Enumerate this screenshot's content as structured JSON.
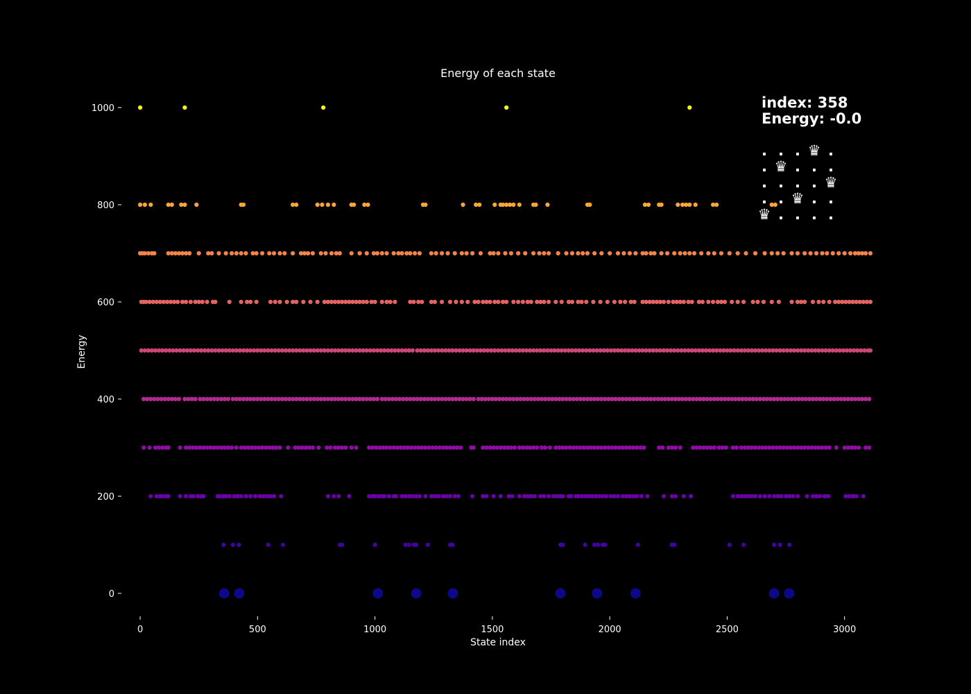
{
  "chart_data": {
    "type": "scatter",
    "title": "Energy of each state",
    "xlabel": "State index",
    "ylabel": "Energy",
    "xlim": [
      -80,
      3125
    ],
    "ylim": [
      -50,
      1050
    ],
    "x_ticks": [
      0,
      500,
      1000,
      1500,
      2000,
      2500,
      3000
    ],
    "y_ticks": [
      0,
      200,
      400,
      600,
      800,
      1000
    ],
    "grid": false,
    "colormap": "plasma",
    "annotation": {
      "index_line": "index: 358",
      "energy_line": "Energy: -0.0",
      "board": [
        [
          ".",
          ".",
          ".",
          "♛",
          "."
        ],
        [
          ".",
          "♛",
          ".",
          ".",
          "."
        ],
        [
          ".",
          ".",
          ".",
          ".",
          "♛"
        ],
        [
          ".",
          ".",
          "♛",
          ".",
          "."
        ],
        [
          "♛",
          ".",
          ".",
          ".",
          "."
        ]
      ]
    },
    "series": [
      {
        "energy": 0,
        "color": "#0d0887",
        "marker_size": "large",
        "x": [
          358,
          422,
          1012,
          1176,
          1332,
          1790,
          1946,
          2110,
          2700,
          2764
        ]
      },
      {
        "energy": 100,
        "color": "#41049d",
        "x": [
          355,
          395,
          420,
          545,
          608,
          850,
          860,
          1000,
          1130,
          1145,
          1165,
          1175,
          1225,
          1320,
          1330,
          1790,
          1800,
          1895,
          1935,
          1950,
          1970,
          1980,
          2120,
          2265,
          2275,
          2510,
          2570,
          2700,
          2725,
          2765
        ]
      },
      {
        "energy": 200,
        "color": "#6a00a8",
        "x": [
          45,
          70,
          85,
          95,
          110,
          120,
          170,
          195,
          215,
          225,
          245,
          260,
          270,
          330,
          340,
          355,
          365,
          380,
          400,
          415,
          430,
          450,
          470,
          490,
          510,
          525,
          540,
          555,
          570,
          600,
          800,
          825,
          845,
          890,
          975,
          990,
          1000,
          1015,
          1030,
          1040,
          1060,
          1080,
          1090,
          1115,
          1130,
          1145,
          1160,
          1175,
          1190,
          1215,
          1240,
          1255,
          1270,
          1290,
          1305,
          1320,
          1340,
          1355,
          1415,
          1460,
          1475,
          1505,
          1535,
          1570,
          1585,
          1615,
          1635,
          1650,
          1665,
          1680,
          1705,
          1720,
          1740,
          1760,
          1775,
          1790,
          1800,
          1825,
          1835,
          1855,
          1865,
          1880,
          1895,
          1910,
          1925,
          1940,
          1955,
          1970,
          1985,
          2005,
          2020,
          2035,
          2055,
          2070,
          2085,
          2100,
          2115,
          2135,
          2160,
          2230,
          2265,
          2280,
          2315,
          2345,
          2525,
          2545,
          2560,
          2575,
          2590,
          2605,
          2620,
          2640,
          2660,
          2680,
          2700,
          2715,
          2730,
          2750,
          2765,
          2780,
          2800,
          2840,
          2865,
          2880,
          2895,
          2915,
          2930,
          3005,
          3020,
          3035,
          3050,
          3080
        ]
      },
      {
        "energy": 300,
        "color": "#8f0da4",
        "x": [
          15,
          40,
          65,
          80,
          95,
          110,
          120,
          170,
          195,
          210,
          225,
          240,
          255,
          270,
          285,
          300,
          315,
          330,
          345,
          360,
          375,
          390,
          410,
          430,
          445,
          460,
          475,
          490,
          505,
          520,
          535,
          550,
          565,
          580,
          595,
          630,
          660,
          675,
          690,
          705,
          720,
          735,
          760,
          795,
          810,
          830,
          845,
          860,
          875,
          900,
          920,
          975,
          990,
          1005,
          1020,
          1035,
          1050,
          1065,
          1080,
          1095,
          1110,
          1125,
          1140,
          1155,
          1170,
          1185,
          1200,
          1215,
          1230,
          1245,
          1260,
          1275,
          1290,
          1305,
          1320,
          1335,
          1350,
          1365,
          1410,
          1420,
          1460,
          1475,
          1490,
          1505,
          1520,
          1535,
          1550,
          1565,
          1580,
          1595,
          1615,
          1630,
          1645,
          1660,
          1675,
          1690,
          1710,
          1725,
          1745,
          1770,
          1785,
          1800,
          1815,
          1830,
          1845,
          1860,
          1875,
          1890,
          1905,
          1920,
          1935,
          1950,
          1965,
          1980,
          1995,
          2010,
          2025,
          2040,
          2055,
          2070,
          2085,
          2100,
          2115,
          2130,
          2145,
          2210,
          2225,
          2250,
          2265,
          2280,
          2300,
          2355,
          2370,
          2385,
          2400,
          2415,
          2430,
          2445,
          2465,
          2480,
          2495,
          2525,
          2540,
          2560,
          2575,
          2590,
          2605,
          2620,
          2635,
          2650,
          2665,
          2680,
          2695,
          2710,
          2725,
          2740,
          2755,
          2770,
          2785,
          2800,
          2815,
          2830,
          2845,
          2860,
          2875,
          2890,
          2905,
          2920,
          2935,
          2965,
          3000,
          3015,
          3030,
          3045,
          3060,
          3090,
          3105
        ]
      },
      {
        "energy": 400,
        "color": "#b12a90",
        "x": [
          15,
          30,
          45,
          60,
          75,
          90,
          105,
          120,
          135,
          150,
          165,
          190,
          205,
          220,
          235,
          255,
          270,
          285,
          300,
          315,
          330,
          345,
          360,
          375,
          395,
          410,
          425,
          440,
          455,
          470,
          485,
          500,
          515,
          530,
          545,
          560,
          575,
          590,
          605,
          620,
          635,
          650,
          665,
          680,
          695,
          710,
          725,
          740,
          755,
          770,
          785,
          800,
          815,
          830,
          845,
          860,
          875,
          890,
          905,
          920,
          935,
          950,
          965,
          980,
          995,
          1010,
          1030,
          1045,
          1060,
          1075,
          1090,
          1105,
          1120,
          1135,
          1150,
          1165,
          1180,
          1195,
          1210,
          1225,
          1240,
          1255,
          1270,
          1285,
          1300,
          1315,
          1330,
          1345,
          1360,
          1375,
          1390,
          1405,
          1420,
          1440,
          1455,
          1470,
          1485,
          1500,
          1515,
          1530,
          1545,
          1560,
          1575,
          1590,
          1605,
          1620,
          1635,
          1650,
          1665,
          1680,
          1695,
          1710,
          1725,
          1740,
          1755,
          1770,
          1785,
          1800,
          1815,
          1830,
          1845,
          1860,
          1875,
          1890,
          1905,
          1920,
          1935,
          1950,
          1965,
          1980,
          1995,
          2010,
          2025,
          2040,
          2055,
          2070,
          2085,
          2100,
          2115,
          2130,
          2145,
          2160,
          2175,
          2190,
          2205,
          2220,
          2235,
          2250,
          2265,
          2280,
          2295,
          2310,
          2325,
          2340,
          2355,
          2370,
          2385,
          2400,
          2415,
          2430,
          2445,
          2460,
          2475,
          2490,
          2505,
          2520,
          2535,
          2550,
          2565,
          2580,
          2595,
          2610,
          2625,
          2640,
          2655,
          2670,
          2685,
          2700,
          2715,
          2730,
          2745,
          2760,
          2775,
          2790,
          2805,
          2820,
          2835,
          2850,
          2865,
          2880,
          2895,
          2910,
          2925,
          2940,
          2955,
          2970,
          2985,
          3000,
          3015,
          3030,
          3045,
          3060,
          3075,
          3090,
          3105
        ]
      },
      {
        "energy": 500,
        "color": "#cc4778",
        "x": [
          5,
          20,
          35,
          50,
          65,
          80,
          95,
          110,
          125,
          140,
          155,
          170,
          185,
          200,
          215,
          230,
          245,
          260,
          275,
          290,
          305,
          320,
          335,
          350,
          365,
          380,
          395,
          410,
          425,
          440,
          455,
          470,
          485,
          500,
          515,
          530,
          545,
          560,
          575,
          590,
          605,
          620,
          635,
          650,
          665,
          680,
          695,
          710,
          725,
          740,
          755,
          770,
          785,
          800,
          815,
          830,
          845,
          860,
          875,
          890,
          905,
          920,
          935,
          950,
          965,
          980,
          995,
          1010,
          1025,
          1040,
          1055,
          1070,
          1085,
          1100,
          1115,
          1130,
          1145,
          1160,
          1180,
          1195,
          1210,
          1225,
          1240,
          1255,
          1270,
          1285,
          1300,
          1315,
          1330,
          1345,
          1360,
          1375,
          1390,
          1405,
          1420,
          1435,
          1450,
          1465,
          1480,
          1495,
          1510,
          1525,
          1540,
          1555,
          1570,
          1585,
          1600,
          1615,
          1630,
          1645,
          1660,
          1675,
          1690,
          1705,
          1720,
          1735,
          1750,
          1765,
          1780,
          1795,
          1810,
          1825,
          1840,
          1855,
          1870,
          1885,
          1900,
          1915,
          1930,
          1945,
          1960,
          1975,
          1990,
          2005,
          2020,
          2035,
          2050,
          2065,
          2080,
          2095,
          2110,
          2125,
          2140,
          2155,
          2170,
          2185,
          2200,
          2215,
          2230,
          2245,
          2260,
          2275,
          2290,
          2305,
          2320,
          2335,
          2350,
          2365,
          2380,
          2395,
          2410,
          2425,
          2440,
          2455,
          2470,
          2485,
          2500,
          2515,
          2530,
          2545,
          2560,
          2575,
          2590,
          2605,
          2620,
          2635,
          2650,
          2665,
          2680,
          2695,
          2710,
          2725,
          2740,
          2755,
          2770,
          2785,
          2800,
          2815,
          2830,
          2845,
          2860,
          2875,
          2890,
          2905,
          2920,
          2935,
          2950,
          2965,
          2980,
          2995,
          3010,
          3025,
          3040,
          3055,
          3070,
          3085,
          3100,
          3110
        ]
      },
      {
        "energy": 600,
        "color": "#e16462",
        "x": [
          5,
          15,
          25,
          40,
          55,
          70,
          85,
          100,
          115,
          130,
          145,
          160,
          180,
          195,
          215,
          235,
          250,
          265,
          285,
          310,
          320,
          380,
          430,
          455,
          470,
          495,
          555,
          575,
          595,
          625,
          650,
          665,
          695,
          725,
          755,
          785,
          800,
          815,
          830,
          845,
          860,
          875,
          890,
          905,
          920,
          935,
          950,
          965,
          985,
          1000,
          1030,
          1050,
          1065,
          1085,
          1150,
          1165,
          1185,
          1200,
          1240,
          1255,
          1285,
          1320,
          1345,
          1370,
          1395,
          1425,
          1440,
          1460,
          1475,
          1490,
          1510,
          1525,
          1545,
          1560,
          1590,
          1610,
          1630,
          1650,
          1665,
          1690,
          1705,
          1720,
          1740,
          1770,
          1795,
          1825,
          1840,
          1865,
          1880,
          1900,
          1930,
          1960,
          1990,
          2020,
          2045,
          2065,
          2090,
          2105,
          2140,
          2155,
          2170,
          2185,
          2200,
          2215,
          2230,
          2250,
          2270,
          2285,
          2300,
          2315,
          2335,
          2350,
          2380,
          2395,
          2420,
          2440,
          2460,
          2475,
          2490,
          2520,
          2545,
          2570,
          2610,
          2630,
          2655,
          2690,
          2720,
          2775,
          2800,
          2815,
          2830,
          2865,
          2890,
          2910,
          2935,
          2960,
          2975,
          2990,
          3005,
          3020,
          3035,
          3050,
          3065,
          3080,
          3095,
          3110
        ]
      },
      {
        "energy": 700,
        "color": "#f2844b",
        "x": [
          0,
          10,
          20,
          35,
          50,
          60,
          120,
          135,
          150,
          165,
          180,
          195,
          210,
          250,
          290,
          305,
          335,
          365,
          390,
          410,
          430,
          450,
          480,
          495,
          520,
          550,
          570,
          595,
          615,
          650,
          685,
          700,
          715,
          735,
          770,
          790,
          815,
          835,
          850,
          900,
          935,
          965,
          995,
          1010,
          1030,
          1050,
          1080,
          1100,
          1115,
          1135,
          1150,
          1170,
          1190,
          1240,
          1260,
          1285,
          1310,
          1340,
          1370,
          1390,
          1415,
          1450,
          1490,
          1505,
          1525,
          1555,
          1580,
          1610,
          1640,
          1675,
          1700,
          1720,
          1740,
          1780,
          1815,
          1840,
          1865,
          1885,
          1905,
          1935,
          1965,
          2000,
          2035,
          2060,
          2085,
          2110,
          2140,
          2155,
          2175,
          2190,
          2220,
          2245,
          2275,
          2300,
          2320,
          2340,
          2360,
          2390,
          2420,
          2445,
          2475,
          2510,
          2545,
          2580,
          2620,
          2660,
          2690,
          2715,
          2740,
          2775,
          2800,
          2830,
          2855,
          2880,
          2905,
          2925,
          2950,
          2975,
          3000,
          3025,
          3045,
          3060,
          3075,
          3090,
          3110
        ]
      },
      {
        "energy": 800,
        "color": "#fca636",
        "x": [
          0,
          20,
          45,
          120,
          135,
          175,
          190,
          240,
          430,
          440,
          650,
          665,
          755,
          775,
          800,
          825,
          900,
          910,
          955,
          970,
          1205,
          1215,
          1375,
          1430,
          1445,
          1510,
          1535,
          1545,
          1560,
          1575,
          1590,
          1615,
          1675,
          1685,
          1735,
          1905,
          1915,
          2150,
          2165,
          2210,
          2220,
          2290,
          2310,
          2325,
          2340,
          2365,
          2440,
          2455,
          2690,
          2705
        ]
      },
      {
        "energy": 1000,
        "color": "#f0f921",
        "x": [
          0,
          190,
          780,
          1560,
          2340
        ]
      }
    ]
  }
}
